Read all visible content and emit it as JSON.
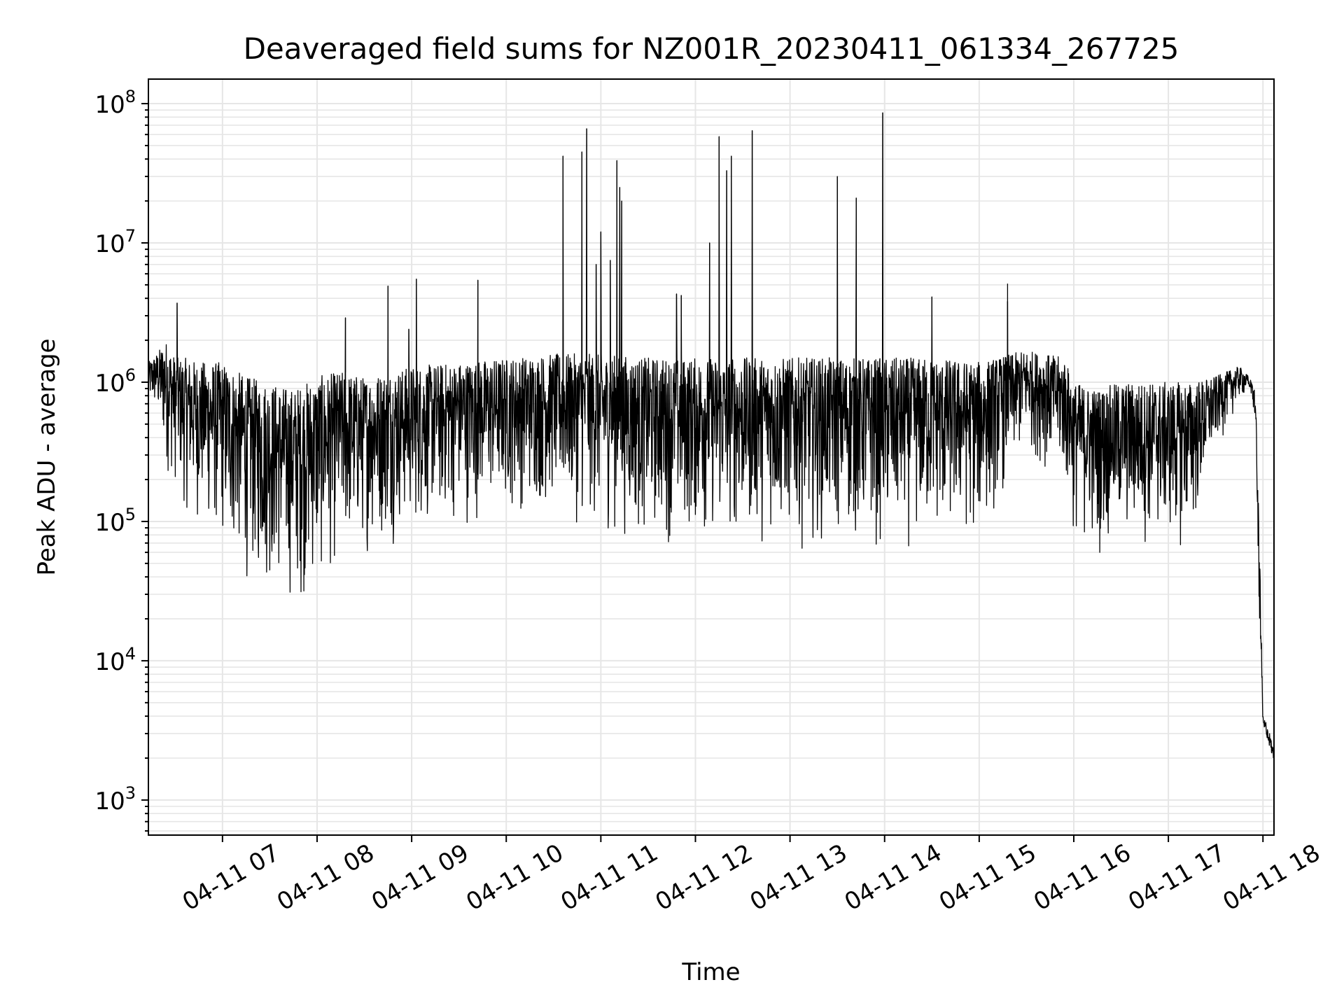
{
  "chart_data": {
    "type": "line",
    "title": "Deaveraged field sums for NZ001R_20230411_061334_267725",
    "xlabel": "Time",
    "ylabel": "Peak ADU - average",
    "yscale": "log",
    "ylim": [
      560,
      150000000
    ],
    "xlim": [
      "04-11 06:13",
      "04-11 18:07"
    ],
    "grid": true,
    "legend": "none",
    "line_color": "#000000",
    "grid_color": "#e6e6e6",
    "x_ticks": [
      {
        "label": "04-11 07",
        "hour": 7
      },
      {
        "label": "04-11 08",
        "hour": 8
      },
      {
        "label": "04-11 09",
        "hour": 9
      },
      {
        "label": "04-11 10",
        "hour": 10
      },
      {
        "label": "04-11 11",
        "hour": 11
      },
      {
        "label": "04-11 12",
        "hour": 12
      },
      {
        "label": "04-11 13",
        "hour": 13
      },
      {
        "label": "04-11 14",
        "hour": 14
      },
      {
        "label": "04-11 15",
        "hour": 15
      },
      {
        "label": "04-11 16",
        "hour": 16
      },
      {
        "label": "04-11 17",
        "hour": 17
      },
      {
        "label": "04-11 18",
        "hour": 18
      }
    ],
    "y_ticks": [
      {
        "base": "10",
        "exp": "3",
        "value": 1000
      },
      {
        "base": "10",
        "exp": "4",
        "value": 10000
      },
      {
        "base": "10",
        "exp": "5",
        "value": 100000
      },
      {
        "base": "10",
        "exp": "6",
        "value": 1000000
      },
      {
        "base": "10",
        "exp": "7",
        "value": 10000000
      },
      {
        "base": "10",
        "exp": "8",
        "value": 100000000
      }
    ],
    "series": [
      {
        "x_hours": [
          6.22,
          6.3,
          6.4,
          6.5,
          6.6,
          6.75,
          7.0,
          7.25,
          7.5,
          7.75,
          8.0,
          8.25,
          8.5,
          8.75,
          9.0,
          9.5,
          10.0,
          10.5,
          11.0,
          11.5,
          12.0,
          12.5,
          13.0,
          13.5,
          14.0,
          14.5,
          15.0,
          15.5,
          15.9,
          16.0,
          16.25,
          16.5,
          16.75,
          17.0,
          17.25,
          17.5,
          17.75,
          17.85,
          17.92,
          17.95,
          18.0,
          18.05,
          18.1
        ],
        "envelope_high": [
          1400000,
          1600000,
          2000000,
          1500000,
          1500000,
          1400000,
          1400000,
          1100000,
          1000000,
          900000,
          1100000,
          1200000,
          1100000,
          1200000,
          1300000,
          1400000,
          1500000,
          1600000,
          1600000,
          1500000,
          1500000,
          1500000,
          1500000,
          1500000,
          1500000,
          1500000,
          1400000,
          1700000,
          1500000,
          1000000,
          900000,
          1000000,
          1000000,
          1000000,
          1000000,
          1100000,
          1300000,
          1100000,
          900000,
          200000,
          4000,
          3500,
          2500
        ],
        "envelope_low": [
          600000,
          500000,
          200000,
          150000,
          100000,
          80000,
          50000,
          30000,
          25000,
          20000,
          25000,
          40000,
          50000,
          60000,
          70000,
          80000,
          100000,
          100000,
          70000,
          60000,
          60000,
          60000,
          60000,
          60000,
          50000,
          55000,
          60000,
          300000,
          150000,
          60000,
          50000,
          55000,
          55000,
          55000,
          55000,
          300000,
          700000,
          800000,
          300000,
          5000,
          2500,
          2000,
          1500
        ],
        "spikes": [
          {
            "hour": 6.52,
            "value": 3700000
          },
          {
            "hour": 8.3,
            "value": 2900000
          },
          {
            "hour": 8.75,
            "value": 4900000
          },
          {
            "hour": 8.97,
            "value": 2400000
          },
          {
            "hour": 9.05,
            "value": 5500000
          },
          {
            "hour": 9.7,
            "value": 5400000
          },
          {
            "hour": 10.6,
            "value": 42000000
          },
          {
            "hour": 10.8,
            "value": 45000000
          },
          {
            "hour": 10.85,
            "value": 66000000
          },
          {
            "hour": 10.95,
            "value": 7000000
          },
          {
            "hour": 11.0,
            "value": 12000000
          },
          {
            "hour": 11.1,
            "value": 7500000
          },
          {
            "hour": 11.17,
            "value": 39000000
          },
          {
            "hour": 11.2,
            "value": 25000000
          },
          {
            "hour": 11.22,
            "value": 20000000
          },
          {
            "hour": 11.8,
            "value": 4300000
          },
          {
            "hour": 11.85,
            "value": 4200000
          },
          {
            "hour": 12.15,
            "value": 10000000
          },
          {
            "hour": 12.25,
            "value": 58000000
          },
          {
            "hour": 12.33,
            "value": 33000000
          },
          {
            "hour": 12.38,
            "value": 42000000
          },
          {
            "hour": 12.6,
            "value": 64000000
          },
          {
            "hour": 13.5,
            "value": 30000000
          },
          {
            "hour": 13.7,
            "value": 21000000
          },
          {
            "hour": 13.98,
            "value": 86000000
          },
          {
            "hour": 14.5,
            "value": 4100000
          },
          {
            "hour": 15.3,
            "value": 5100000
          },
          {
            "hour": 15.3,
            "value": 3800000
          }
        ]
      }
    ]
  }
}
